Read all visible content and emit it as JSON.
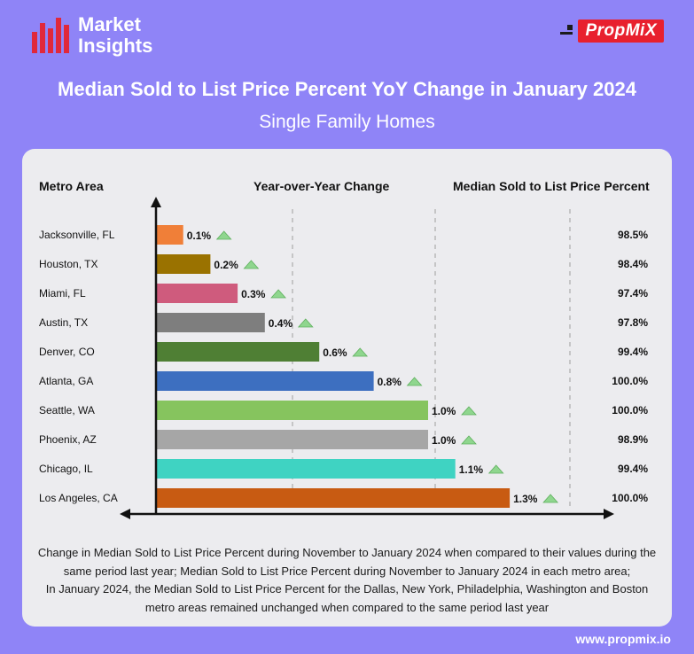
{
  "logo": {
    "line1": "Market",
    "line2": "Insights",
    "color": "#e0283b"
  },
  "brand": {
    "name": "PropMiX",
    "color": "#e8202e"
  },
  "title": "Median Sold to List Price Percent YoY Change in January 2024",
  "subtitle": "Single Family Homes",
  "headers": {
    "metro": "Metro Area",
    "change": "Year-over-Year Change",
    "median": "Median Sold to List Price Percent"
  },
  "chart_data": {
    "type": "bar",
    "orientation": "horizontal",
    "categories": [
      "Jacksonville, FL",
      "Houston, TX",
      "Miami, FL",
      "Austin, TX",
      "Denver, CO",
      "Atlanta, GA",
      "Seattle, WA",
      "Phoenix, AZ",
      "Chicago, IL",
      "Los Angeles, CA"
    ],
    "values": [
      0.1,
      0.2,
      0.3,
      0.4,
      0.6,
      0.8,
      1.0,
      1.0,
      1.1,
      1.3
    ],
    "value_labels": [
      "0.1%",
      "0.2%",
      "0.3%",
      "0.4%",
      "0.6%",
      "0.8%",
      "1.0%",
      "1.0%",
      "1.1%",
      "1.3%"
    ],
    "bar_colors": [
      "#f07f38",
      "#9a7200",
      "#cf5b7d",
      "#7e7e7e",
      "#4f7f34",
      "#3d6fc0",
      "#86c45e",
      "#a6a6a6",
      "#3fd3c2",
      "#c85b12"
    ],
    "trend": "up",
    "trend_color": "#8fd68e",
    "median_sold_to_list": [
      "98.5%",
      "98.4%",
      "97.4%",
      "97.8%",
      "99.4%",
      "100.0%",
      "100.0%",
      "98.9%",
      "99.4%",
      "100.0%"
    ]
  },
  "footnote": {
    "line1": "Change in Median Sold to List Price Percent during November to January 2024 when compared to their values during the",
    "line2": "same period last year; Median Sold to List Price Percent during November to January 2024 in each metro area;",
    "line3": "In January 2024, the Median Sold to List Price Percent for the Dallas, New York, Philadelphia, Washington and Boston",
    "line4": "metro areas remained unchanged when compared to the same period last year"
  },
  "website": "www.propmix.io"
}
